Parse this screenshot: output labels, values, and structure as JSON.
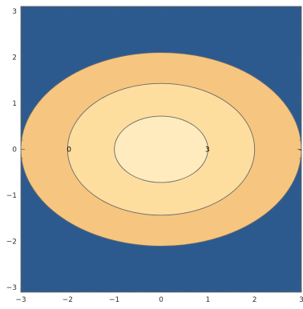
{
  "chart_data": {
    "type": "contour",
    "title": "",
    "xlabel": "",
    "ylabel": "",
    "xlim": [
      -3,
      3
    ],
    "ylim": [
      -3.1,
      3.1
    ],
    "x_ticks": [
      -3,
      -2,
      -1,
      0,
      1,
      2,
      3
    ],
    "y_ticks": [
      -3,
      -2,
      -1,
      0,
      1,
      2,
      3
    ],
    "regions": [
      {
        "name": "background",
        "color": "#2c5a8f"
      },
      {
        "name": "outer",
        "rx": 3.0,
        "ry": 2.1,
        "color": "#f6c57f"
      },
      {
        "name": "middle",
        "rx": 2.0,
        "ry": 1.43,
        "color": "#fdde9f"
      },
      {
        "name": "inner",
        "rx": 1.0,
        "ry": 0.72,
        "color": "#ffebbd"
      }
    ],
    "contour_line_color": "#6a6a6a",
    "contour_labels": [
      {
        "text": "0",
        "x": -1.97,
        "y": 0
      },
      {
        "text": "3",
        "x": 0.99,
        "y": 0
      },
      {
        "text": "-",
        "x": 2.98,
        "y": 0
      }
    ]
  }
}
